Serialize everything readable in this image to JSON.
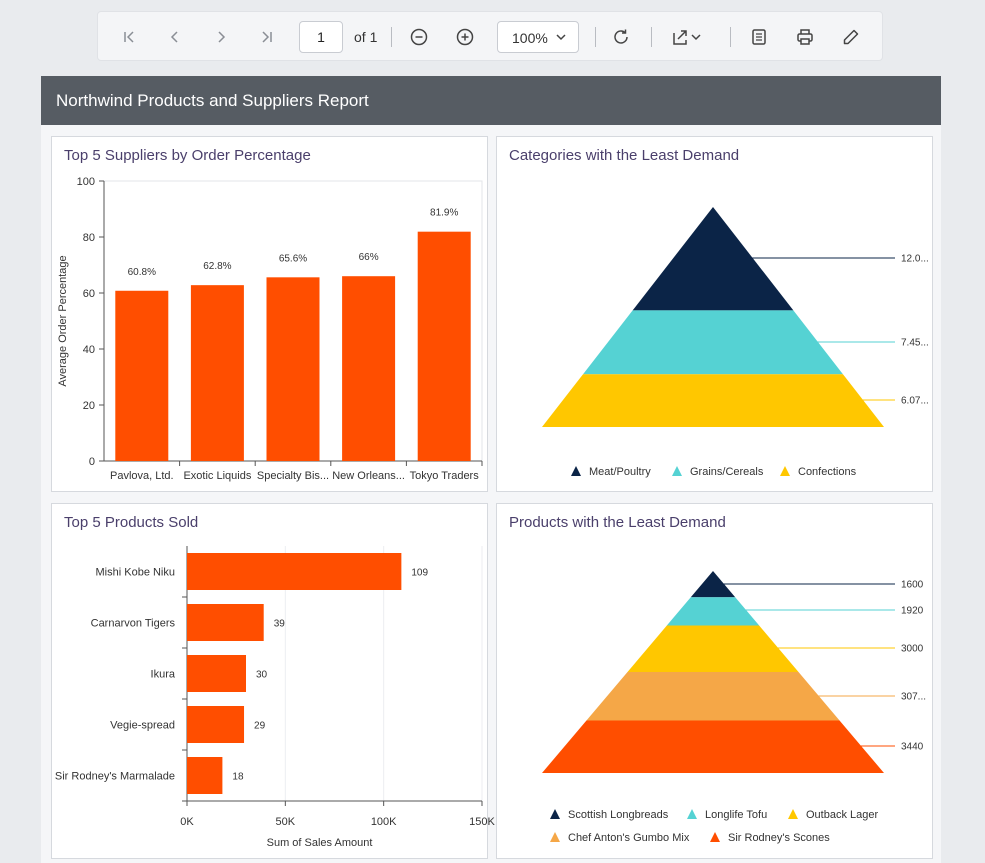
{
  "toolbar": {
    "page_value": "1",
    "page_of": "of 1",
    "zoom": "100%"
  },
  "report": {
    "title": "Northwind Products and Suppliers Report"
  },
  "colors": {
    "bar": "#ff4e00",
    "navy": "#0b2447",
    "teal": "#55d2d3",
    "yellow": "#ffc700",
    "orange_light": "#f5a747",
    "header_bg": "#565c63"
  },
  "chart_data": [
    {
      "type": "bar",
      "title": "Top 5 Suppliers by Order Percentage",
      "categories": [
        "Pavlova, Ltd.",
        "Exotic Liquids",
        "Specialty Bis...",
        "New Orleans...",
        "Tokyo Traders"
      ],
      "values": [
        60.8,
        62.8,
        65.6,
        66,
        81.9
      ],
      "value_labels": [
        "60.8%",
        "62.8%",
        "65.6%",
        "66%",
        "81.9%"
      ],
      "ylabel": "Average Order Percentage",
      "xlabel": "",
      "ylim": [
        0,
        100
      ],
      "yticks": [
        "0",
        "20",
        "40",
        "60",
        "80",
        "100"
      ]
    },
    {
      "type": "pyramid",
      "title": "Categories with the Least Demand",
      "series": [
        {
          "name": "Meat/Poultry",
          "label": "12.0...",
          "color": "#0b2447"
        },
        {
          "name": "Grains/Cereals",
          "label": "7.45...",
          "color": "#55d2d3"
        },
        {
          "name": "Confections",
          "label": "6.07...",
          "color": "#ffc700"
        }
      ]
    },
    {
      "type": "bar-horizontal",
      "title": "Top 5 Products Sold",
      "categories": [
        "Mishi Kobe Niku",
        "Carnarvon Tigers",
        "Ikura",
        "Vegie-spread",
        "Sir Rodney's Marmalade"
      ],
      "values": [
        109000,
        39000,
        30000,
        29000,
        18000
      ],
      "value_labels": [
        "109",
        "39",
        "30",
        "29",
        "18"
      ],
      "xlabel": "Sum of Sales Amount",
      "xlim": [
        0,
        150000
      ],
      "xticks": [
        "0K",
        "50K",
        "100K",
        "150K"
      ]
    },
    {
      "type": "pyramid",
      "title": "Products with the Least Demand",
      "series": [
        {
          "name": "Scottish Longbreads",
          "label": "1600",
          "color": "#0b2447"
        },
        {
          "name": "Longlife Tofu",
          "label": "1920",
          "color": "#55d2d3"
        },
        {
          "name": "Outback Lager",
          "label": "3000",
          "color": "#ffc700"
        },
        {
          "name": "Chef Anton's Gumbo Mix",
          "label": "307...",
          "color": "#f5a747"
        },
        {
          "name": "Sir Rodney's Scones",
          "label": "3440",
          "color": "#ff4e00"
        }
      ]
    }
  ]
}
